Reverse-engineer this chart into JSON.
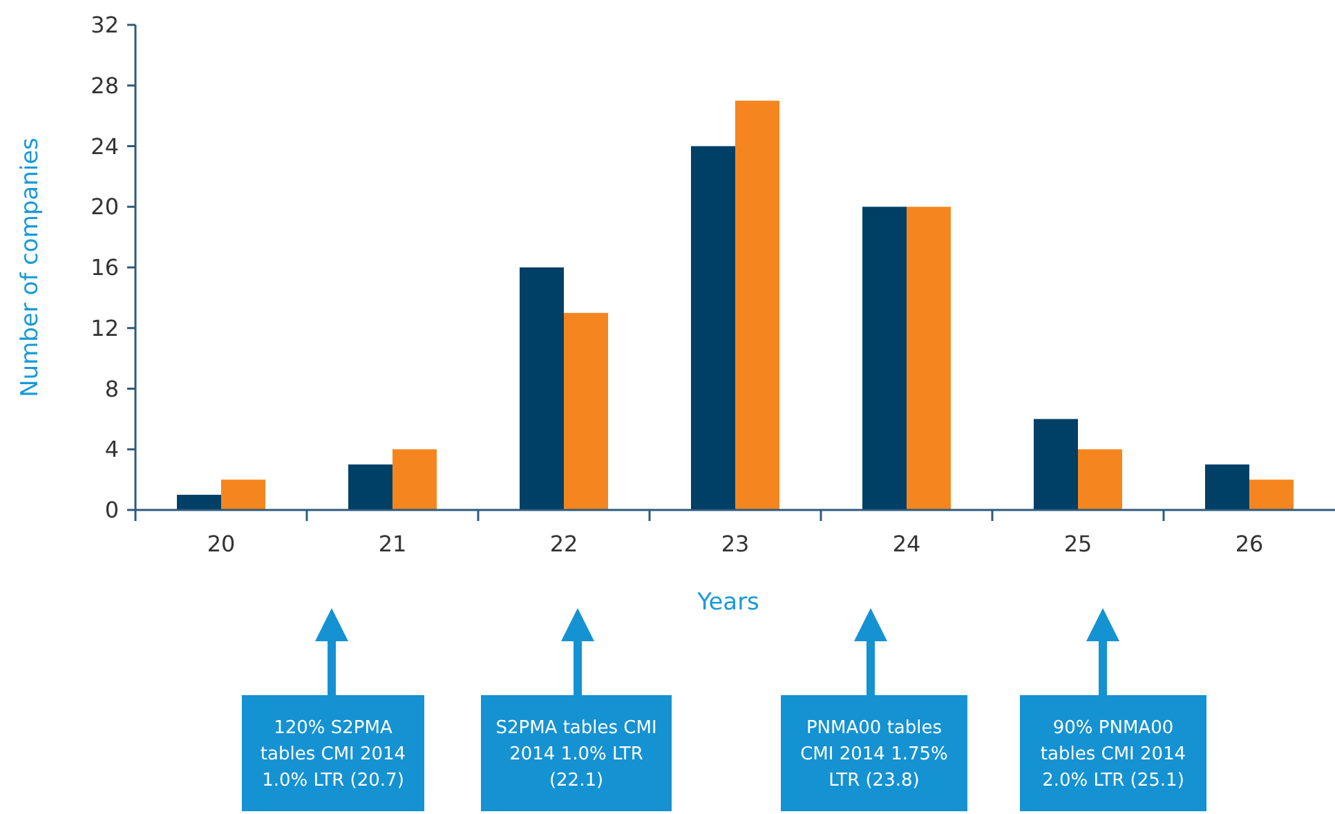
{
  "chart_data": {
    "type": "bar",
    "xlabel": "Years",
    "ylabel": "Number of companies",
    "categories": [
      "20",
      "21",
      "22",
      "23",
      "24",
      "25",
      "26"
    ],
    "series": [
      {
        "color": "#003f66",
        "values": [
          1,
          3,
          16,
          24,
          20,
          6,
          3
        ]
      },
      {
        "color": "#f5861f",
        "values": [
          2,
          4,
          13,
          27,
          20,
          4,
          2
        ]
      }
    ],
    "ylim": [
      0,
      32
    ],
    "yticks": [
      0,
      4,
      8,
      12,
      16,
      20,
      24,
      28,
      32
    ],
    "annotations": [
      "120% S2PMA tables CMI 2014 1.0% LTR (20.7)",
      "S2PMA tables CMI 2014 1.0% LTR (22.1)",
      "PNMA00 tables CMI 2014 1.75% LTR (23.8)",
      "90% PNMA00 tables CMI 2014 2.0% LTR (25.1)"
    ]
  }
}
